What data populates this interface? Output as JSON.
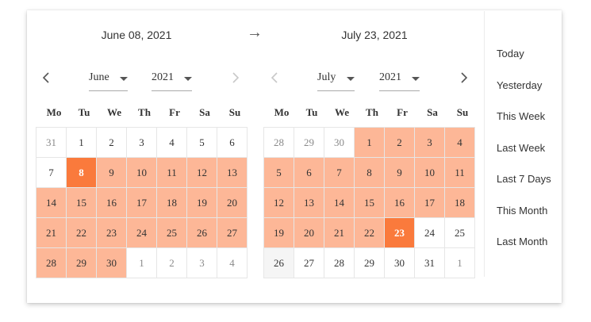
{
  "range": {
    "start_label": "June 08, 2021",
    "end_label": "July 23, 2021",
    "separator": "→"
  },
  "weekdays": [
    "Mo",
    "Tu",
    "We",
    "Th",
    "Fr",
    "Sa",
    "Su"
  ],
  "left": {
    "month": "June",
    "year": "2021",
    "days": [
      {
        "d": "31",
        "s": "muted"
      },
      {
        "d": "1",
        "s": ""
      },
      {
        "d": "2",
        "s": ""
      },
      {
        "d": "3",
        "s": ""
      },
      {
        "d": "4",
        "s": ""
      },
      {
        "d": "5",
        "s": ""
      },
      {
        "d": "6",
        "s": ""
      },
      {
        "d": "7",
        "s": ""
      },
      {
        "d": "8",
        "s": "endpoint"
      },
      {
        "d": "9",
        "s": "inrange"
      },
      {
        "d": "10",
        "s": "inrange"
      },
      {
        "d": "11",
        "s": "inrange"
      },
      {
        "d": "12",
        "s": "inrange"
      },
      {
        "d": "13",
        "s": "inrange"
      },
      {
        "d": "14",
        "s": "inrange"
      },
      {
        "d": "15",
        "s": "inrange"
      },
      {
        "d": "16",
        "s": "inrange"
      },
      {
        "d": "17",
        "s": "inrange"
      },
      {
        "d": "18",
        "s": "inrange"
      },
      {
        "d": "19",
        "s": "inrange"
      },
      {
        "d": "20",
        "s": "inrange"
      },
      {
        "d": "21",
        "s": "inrange"
      },
      {
        "d": "22",
        "s": "inrange"
      },
      {
        "d": "23",
        "s": "inrange"
      },
      {
        "d": "24",
        "s": "inrange"
      },
      {
        "d": "25",
        "s": "inrange"
      },
      {
        "d": "26",
        "s": "inrange"
      },
      {
        "d": "27",
        "s": "inrange"
      },
      {
        "d": "28",
        "s": "inrange"
      },
      {
        "d": "29",
        "s": "inrange"
      },
      {
        "d": "30",
        "s": "inrange"
      },
      {
        "d": "1",
        "s": "muted"
      },
      {
        "d": "2",
        "s": "muted"
      },
      {
        "d": "3",
        "s": "muted"
      },
      {
        "d": "4",
        "s": "muted"
      }
    ]
  },
  "right": {
    "month": "July",
    "year": "2021",
    "days": [
      {
        "d": "28",
        "s": "muted"
      },
      {
        "d": "29",
        "s": "muted"
      },
      {
        "d": "30",
        "s": "muted"
      },
      {
        "d": "1",
        "s": "inrange"
      },
      {
        "d": "2",
        "s": "inrange"
      },
      {
        "d": "3",
        "s": "inrange"
      },
      {
        "d": "4",
        "s": "inrange"
      },
      {
        "d": "5",
        "s": "inrange"
      },
      {
        "d": "6",
        "s": "inrange"
      },
      {
        "d": "7",
        "s": "inrange"
      },
      {
        "d": "8",
        "s": "inrange"
      },
      {
        "d": "9",
        "s": "inrange"
      },
      {
        "d": "10",
        "s": "inrange"
      },
      {
        "d": "11",
        "s": "inrange"
      },
      {
        "d": "12",
        "s": "inrange"
      },
      {
        "d": "13",
        "s": "inrange"
      },
      {
        "d": "14",
        "s": "inrange"
      },
      {
        "d": "15",
        "s": "inrange"
      },
      {
        "d": "16",
        "s": "inrange"
      },
      {
        "d": "17",
        "s": "inrange"
      },
      {
        "d": "18",
        "s": "inrange"
      },
      {
        "d": "19",
        "s": "inrange"
      },
      {
        "d": "20",
        "s": "inrange"
      },
      {
        "d": "21",
        "s": "inrange"
      },
      {
        "d": "22",
        "s": "inrange"
      },
      {
        "d": "23",
        "s": "endpoint"
      },
      {
        "d": "24",
        "s": ""
      },
      {
        "d": "25",
        "s": ""
      },
      {
        "d": "26",
        "s": "shaded"
      },
      {
        "d": "27",
        "s": ""
      },
      {
        "d": "28",
        "s": ""
      },
      {
        "d": "29",
        "s": ""
      },
      {
        "d": "30",
        "s": ""
      },
      {
        "d": "31",
        "s": ""
      },
      {
        "d": "1",
        "s": "muted"
      }
    ]
  },
  "presets": [
    "Today",
    "Yesterday",
    "This Week",
    "Last Week",
    "Last 7 Days",
    "This Month",
    "Last Month"
  ],
  "icons": {
    "prev": "chevron-left-icon",
    "next": "chevron-right-icon",
    "caret": "caret-down-icon",
    "separator": "arrow-right-icon"
  },
  "colors": {
    "in_range": "#fdb797",
    "endpoint": "#fa7a3c",
    "muted_text": "#8a8a8a",
    "shaded": "#f5f5f5"
  }
}
